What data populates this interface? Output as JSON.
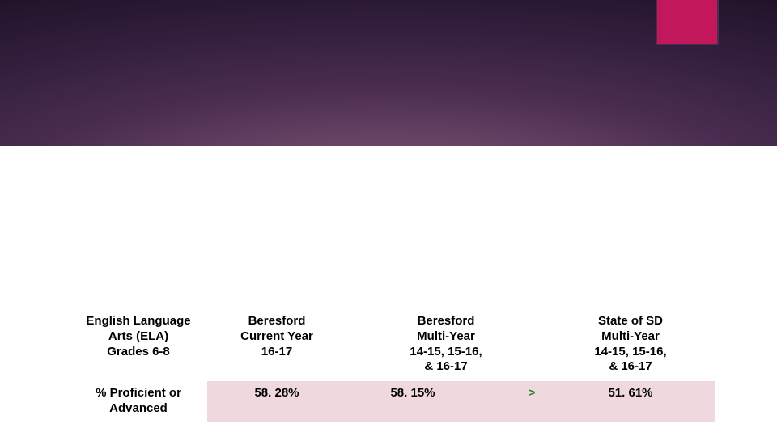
{
  "colors": {
    "accent": "#c2185b",
    "data_row_bg": "#efd8de",
    "comparator_text": "#2e7d32",
    "header_bg": "#ffffff"
  },
  "table": {
    "columns": [
      {
        "lines": [
          "English Language",
          "Arts (ELA)",
          "Grades 6-8"
        ]
      },
      {
        "lines": [
          "Beresford",
          "Current Year",
          "16-17"
        ]
      },
      {
        "lines": [
          "Beresford",
          "Multi-Year",
          "14-15, 15-16,",
          "& 16-17"
        ]
      },
      {
        "lines": [
          "State of SD",
          "Multi-Year",
          "14-15, 15-16,",
          "& 16-17"
        ]
      }
    ],
    "row": {
      "label_lines": [
        "% Proficient or",
        "Advanced"
      ],
      "beresford_current": "58. 28%",
      "beresford_multi": "58. 15%",
      "comparator": ">",
      "state_multi": "51. 61%"
    }
  }
}
